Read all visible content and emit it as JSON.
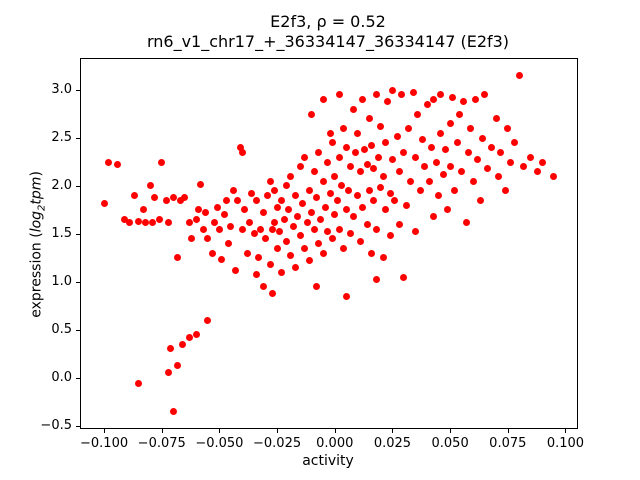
{
  "title": {
    "line1": "E2f3, ρ = 0.52",
    "line2": "rn6_v1_chr17_+_36334147_36334147 (E2f3)"
  },
  "axes": {
    "xlabel": "activity",
    "ylabel_prefix": "expression (",
    "ylabel_word1": "log",
    "ylabel_sub": "2",
    "ylabel_word2": "tpm",
    "ylabel_suffix": ")"
  },
  "chart_data": {
    "type": "scatter",
    "title": "E2f3, ρ = 0.52",
    "subtitle": "rn6_v1_chr17_+_36334147_36334147 (E2f3)",
    "xlabel": "activity",
    "ylabel": "expression (log2 tpm)",
    "legend": "none",
    "grid": false,
    "marker_color": "#ff0000",
    "xlim": [
      -0.11,
      0.105
    ],
    "ylim": [
      -0.525,
      3.325
    ],
    "x_ticks": {
      "values": [
        -0.1,
        -0.075,
        -0.05,
        -0.025,
        0.0,
        0.025,
        0.05,
        0.075,
        0.1
      ],
      "labels": [
        "−0.100",
        "−0.075",
        "−0.050",
        "−0.025",
        "0.000",
        "0.025",
        "0.050",
        "0.075",
        "0.100"
      ]
    },
    "y_ticks": {
      "values": [
        -0.5,
        0.0,
        0.5,
        1.0,
        1.5,
        2.0,
        2.5,
        3.0
      ],
      "labels": [
        "−0.5",
        "0.0",
        "0.5",
        "1.0",
        "1.5",
        "2.0",
        "2.5",
        "3.0"
      ]
    },
    "points": [
      [
        -0.085,
        -0.06
      ],
      [
        -0.07,
        -0.35
      ],
      [
        -0.072,
        0.05
      ],
      [
        -0.068,
        0.13
      ],
      [
        -0.071,
        0.3
      ],
      [
        -0.066,
        0.35
      ],
      [
        -0.063,
        0.42
      ],
      [
        -0.06,
        0.45
      ],
      [
        -0.055,
        0.6
      ],
      [
        -0.1,
        1.82
      ],
      [
        -0.098,
        2.25
      ],
      [
        -0.094,
        2.22
      ],
      [
        -0.091,
        1.65
      ],
      [
        -0.089,
        1.62
      ],
      [
        -0.087,
        1.9
      ],
      [
        -0.085,
        1.63
      ],
      [
        -0.083,
        1.75
      ],
      [
        -0.082,
        1.62
      ],
      [
        -0.08,
        2.0
      ],
      [
        -0.079,
        1.62
      ],
      [
        -0.078,
        1.88
      ],
      [
        -0.076,
        1.65
      ],
      [
        -0.075,
        2.25
      ],
      [
        -0.073,
        1.85
      ],
      [
        -0.072,
        1.62
      ],
      [
        -0.07,
        1.88
      ],
      [
        -0.068,
        1.25
      ],
      [
        -0.067,
        1.85
      ],
      [
        -0.065,
        1.88
      ],
      [
        -0.063,
        1.62
      ],
      [
        -0.062,
        1.45
      ],
      [
        -0.06,
        1.65
      ],
      [
        -0.059,
        1.75
      ],
      [
        -0.058,
        2.02
      ],
      [
        -0.057,
        1.55
      ],
      [
        -0.056,
        1.72
      ],
      [
        -0.055,
        1.45
      ],
      [
        -0.053,
        1.3
      ],
      [
        -0.052,
        1.62
      ],
      [
        -0.051,
        1.78
      ],
      [
        -0.05,
        1.55
      ],
      [
        -0.049,
        1.23
      ],
      [
        -0.048,
        1.7
      ],
      [
        -0.047,
        1.85
      ],
      [
        -0.046,
        1.4
      ],
      [
        -0.045,
        1.58
      ],
      [
        -0.044,
        1.95
      ],
      [
        -0.043,
        1.12
      ],
      [
        -0.042,
        1.85
      ],
      [
        -0.041,
        2.4
      ],
      [
        -0.04,
        1.55
      ],
      [
        -0.04,
        2.35
      ],
      [
        -0.039,
        1.75
      ],
      [
        -0.038,
        1.3
      ],
      [
        -0.037,
        1.62
      ],
      [
        -0.036,
        1.92
      ],
      [
        -0.035,
        1.5
      ],
      [
        -0.034,
        1.08
      ],
      [
        -0.034,
        1.85
      ],
      [
        -0.033,
        1.25
      ],
      [
        -0.032,
        1.55
      ],
      [
        -0.031,
        0.95
      ],
      [
        -0.031,
        1.72
      ],
      [
        -0.03,
        1.45
      ],
      [
        -0.029,
        1.9
      ],
      [
        -0.028,
        1.18
      ],
      [
        -0.028,
        2.05
      ],
      [
        -0.027,
        1.55
      ],
      [
        -0.027,
        0.88
      ],
      [
        -0.026,
        1.62
      ],
      [
        -0.026,
        1.95
      ],
      [
        -0.025,
        1.35
      ],
      [
        -0.025,
        1.78
      ],
      [
        -0.024,
        1.52
      ],
      [
        -0.023,
        1.85
      ],
      [
        -0.023,
        1.1
      ],
      [
        -0.022,
        1.65
      ],
      [
        -0.021,
        2.0
      ],
      [
        -0.021,
        1.42
      ],
      [
        -0.02,
        1.75
      ],
      [
        -0.019,
        1.28
      ],
      [
        -0.019,
        2.1
      ],
      [
        -0.018,
        1.58
      ],
      [
        -0.017,
        1.9
      ],
      [
        -0.017,
        1.15
      ],
      [
        -0.016,
        1.68
      ],
      [
        -0.015,
        2.2
      ],
      [
        -0.015,
        1.48
      ],
      [
        -0.014,
        1.82
      ],
      [
        -0.013,
        1.35
      ],
      [
        -0.013,
        2.3
      ],
      [
        -0.012,
        1.62
      ],
      [
        -0.011,
        1.95
      ],
      [
        -0.011,
        1.22
      ],
      [
        -0.01,
        1.72
      ],
      [
        -0.01,
        2.75
      ],
      [
        -0.009,
        2.15
      ],
      [
        -0.009,
        1.55
      ],
      [
        -0.008,
        1.88
      ],
      [
        -0.008,
        0.95
      ],
      [
        -0.007,
        1.4
      ],
      [
        -0.007,
        2.35
      ],
      [
        -0.006,
        1.65
      ],
      [
        -0.005,
        2.05
      ],
      [
        -0.005,
        1.3
      ],
      [
        -0.005,
        2.9
      ],
      [
        -0.004,
        1.78
      ],
      [
        -0.003,
        2.25
      ],
      [
        -0.003,
        1.52
      ],
      [
        -0.002,
        1.92
      ],
      [
        -0.002,
        2.55
      ],
      [
        -0.001,
        1.45
      ],
      [
        -0.001,
        2.45
      ],
      [
        0.0,
        1.7
      ],
      [
        0.0,
        2.1
      ],
      [
        0.001,
        1.85
      ],
      [
        0.002,
        2.3
      ],
      [
        0.002,
        1.55
      ],
      [
        0.002,
        2.95
      ],
      [
        0.003,
        2.0
      ],
      [
        0.004,
        1.35
      ],
      [
        0.004,
        2.6
      ],
      [
        0.005,
        1.75
      ],
      [
        0.005,
        2.4
      ],
      [
        0.005,
        0.85
      ],
      [
        0.006,
        1.95
      ],
      [
        0.007,
        2.2
      ],
      [
        0.007,
        1.5
      ],
      [
        0.008,
        2.8
      ],
      [
        0.008,
        1.68
      ],
      [
        0.009,
        2.35
      ],
      [
        0.01,
        1.9
      ],
      [
        0.01,
        2.55
      ],
      [
        0.011,
        1.42
      ],
      [
        0.011,
        2.15
      ],
      [
        0.012,
        1.78
      ],
      [
        0.012,
        2.9
      ],
      [
        0.013,
        2.38
      ],
      [
        0.014,
        1.6
      ],
      [
        0.014,
        2.22
      ],
      [
        0.015,
        1.95
      ],
      [
        0.015,
        2.7
      ],
      [
        0.016,
        1.3
      ],
      [
        0.016,
        2.42
      ],
      [
        0.017,
        1.85
      ],
      [
        0.017,
        2.18
      ],
      [
        0.018,
        2.95
      ],
      [
        0.018,
        1.02
      ],
      [
        0.018,
        1.55
      ],
      [
        0.019,
        2.3
      ],
      [
        0.02,
        1.98
      ],
      [
        0.02,
        2.62
      ],
      [
        0.021,
        1.25
      ],
      [
        0.021,
        2.1
      ],
      [
        0.022,
        1.75
      ],
      [
        0.022,
        2.45
      ],
      [
        0.023,
        2.88
      ],
      [
        0.024,
        1.92
      ],
      [
        0.024,
        1.48
      ],
      [
        0.025,
        2.28
      ],
      [
        0.025,
        3.0
      ],
      [
        0.026,
        1.85
      ],
      [
        0.027,
        2.52
      ],
      [
        0.028,
        1.6
      ],
      [
        0.028,
        2.15
      ],
      [
        0.029,
        2.95
      ],
      [
        0.03,
        1.05
      ],
      [
        0.03,
        2.35
      ],
      [
        0.031,
        1.8
      ],
      [
        0.032,
        2.6
      ],
      [
        0.033,
        2.05
      ],
      [
        0.034,
        2.98
      ],
      [
        0.035,
        1.52
      ],
      [
        0.035,
        2.3
      ],
      [
        0.036,
        2.75
      ],
      [
        0.037,
        1.95
      ],
      [
        0.038,
        2.48
      ],
      [
        0.039,
        2.2
      ],
      [
        0.04,
        2.85
      ],
      [
        0.041,
        2.05
      ],
      [
        0.042,
        2.4
      ],
      [
        0.043,
        1.68
      ],
      [
        0.043,
        2.9
      ],
      [
        0.044,
        2.25
      ],
      [
        0.045,
        1.9
      ],
      [
        0.046,
        2.55
      ],
      [
        0.046,
        2.95
      ],
      [
        0.047,
        2.12
      ],
      [
        0.048,
        2.38
      ],
      [
        0.049,
        1.75
      ],
      [
        0.05,
        2.65
      ],
      [
        0.05,
        2.2
      ],
      [
        0.051,
        2.92
      ],
      [
        0.052,
        1.95
      ],
      [
        0.053,
        2.45
      ],
      [
        0.054,
        2.75
      ],
      [
        0.055,
        2.15
      ],
      [
        0.056,
        2.88
      ],
      [
        0.057,
        1.62
      ],
      [
        0.058,
        2.35
      ],
      [
        0.059,
        2.6
      ],
      [
        0.06,
        2.05
      ],
      [
        0.061,
        2.9
      ],
      [
        0.062,
        2.28
      ],
      [
        0.063,
        1.85
      ],
      [
        0.064,
        2.5
      ],
      [
        0.065,
        2.95
      ],
      [
        0.066,
        2.18
      ],
      [
        0.068,
        2.4
      ],
      [
        0.07,
        2.7
      ],
      [
        0.071,
        2.1
      ],
      [
        0.072,
        2.35
      ],
      [
        0.074,
        1.95
      ],
      [
        0.075,
        2.6
      ],
      [
        0.076,
        2.25
      ],
      [
        0.078,
        2.45
      ],
      [
        0.08,
        3.15
      ],
      [
        0.082,
        2.2
      ],
      [
        0.085,
        2.3
      ],
      [
        0.088,
        2.15
      ],
      [
        0.09,
        2.25
      ],
      [
        0.095,
        2.1
      ]
    ]
  }
}
